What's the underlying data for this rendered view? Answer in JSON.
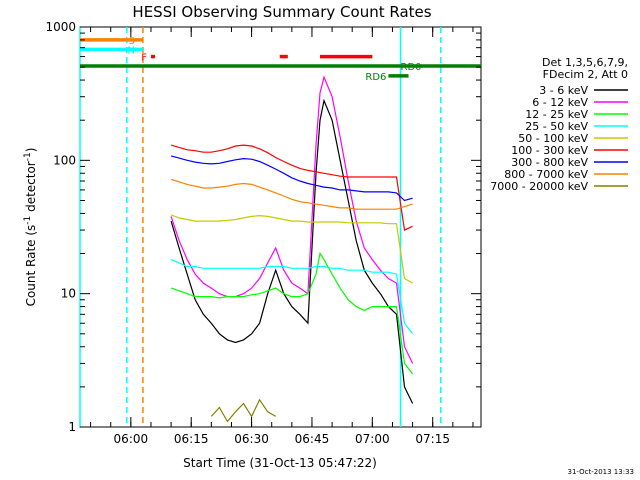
{
  "chart_data": {
    "type": "line",
    "title": "HESSI Observing Summary Count Rates",
    "xlabel": "Start Time (31-Oct-13 05:47:22)",
    "ylabel": "Count Rate (s-1 detector-1)",
    "x_unit": "HH:MM",
    "xlim": [
      "05:47:22",
      "07:27:00"
    ],
    "x_ticks": [
      "06:00",
      "06:15",
      "06:30",
      "06:45",
      "07:00",
      "07:15"
    ],
    "y_scale": "log",
    "ylim": [
      1,
      1000
    ],
    "y_ticks": [
      "1",
      "10",
      "100",
      "1000"
    ],
    "grid": false,
    "legend_position": "right",
    "legend_header": [
      "Det 1,3,5,6,7,9,",
      "FDecim 2, Att 0"
    ],
    "series": [
      {
        "name": "3 - 6 keV",
        "color": "#000000",
        "x": [
          "06:10",
          "06:12",
          "06:14",
          "06:16",
          "06:18",
          "06:20",
          "06:22",
          "06:24",
          "06:26",
          "06:28",
          "06:30",
          "06:32",
          "06:34",
          "06:36",
          "06:38",
          "06:40",
          "06:42",
          "06:44",
          "06:46",
          "06:47",
          "06:48",
          "06:50",
          "06:52",
          "06:54",
          "06:56",
          "06:58",
          "07:00",
          "07:02",
          "07:04",
          "07:06",
          "07:08",
          "07:10"
        ],
        "y": [
          35,
          22,
          14,
          9,
          7,
          6,
          5,
          4.5,
          4.3,
          4.5,
          5,
          6,
          10,
          15,
          10,
          8,
          7,
          6,
          80,
          200,
          280,
          200,
          100,
          50,
          25,
          15,
          12,
          10,
          8,
          7,
          2,
          1.5
        ]
      },
      {
        "name": "6 - 12 keV",
        "color": "#ff00ff",
        "x": [
          "06:10",
          "06:12",
          "06:14",
          "06:16",
          "06:18",
          "06:20",
          "06:22",
          "06:24",
          "06:26",
          "06:28",
          "06:30",
          "06:32",
          "06:34",
          "06:36",
          "06:38",
          "06:40",
          "06:42",
          "06:44",
          "06:46",
          "06:47",
          "06:48",
          "06:50",
          "06:52",
          "06:54",
          "06:56",
          "06:58",
          "07:00",
          "07:02",
          "07:04",
          "07:06",
          "07:08",
          "07:10"
        ],
        "y": [
          38,
          25,
          18,
          14,
          12,
          11,
          10,
          9.5,
          9.5,
          10,
          11,
          13,
          17,
          22,
          15,
          12,
          11,
          10,
          130,
          320,
          420,
          300,
          150,
          70,
          35,
          22,
          18,
          15,
          13,
          12,
          4,
          3
        ]
      },
      {
        "name": "12 - 25 keV",
        "color": "#00ff00",
        "x": [
          "06:10",
          "06:12",
          "06:14",
          "06:16",
          "06:18",
          "06:20",
          "06:22",
          "06:24",
          "06:26",
          "06:28",
          "06:30",
          "06:32",
          "06:34",
          "06:36",
          "06:38",
          "06:40",
          "06:42",
          "06:44",
          "06:46",
          "06:47",
          "06:48",
          "06:50",
          "06:52",
          "06:54",
          "06:56",
          "06:58",
          "07:00",
          "07:02",
          "07:04",
          "07:06",
          "07:08",
          "07:10"
        ],
        "y": [
          11,
          10.5,
          10,
          9.5,
          9.5,
          9.5,
          9.3,
          9.5,
          9.5,
          9.5,
          9.8,
          10,
          10.5,
          11,
          10,
          9.5,
          9.5,
          10,
          14,
          20,
          18,
          14,
          11,
          9,
          8,
          7.5,
          8,
          8,
          8,
          8,
          3,
          2.5
        ]
      },
      {
        "name": "25 - 50 keV",
        "color": "#00ffff",
        "x": [
          "06:10",
          "06:12",
          "06:14",
          "06:16",
          "06:18",
          "06:20",
          "06:22",
          "06:24",
          "06:26",
          "06:28",
          "06:30",
          "06:32",
          "06:34",
          "06:36",
          "06:38",
          "06:40",
          "06:42",
          "06:44",
          "06:46",
          "06:48",
          "06:50",
          "06:52",
          "06:54",
          "06:56",
          "06:58",
          "07:00",
          "07:02",
          "07:04",
          "07:06",
          "07:08",
          "07:10"
        ],
        "y": [
          18,
          17,
          16,
          16,
          15.5,
          15.5,
          15.5,
          15.5,
          15.5,
          15.5,
          15.5,
          15.5,
          16,
          16,
          16,
          15.5,
          15.5,
          15.5,
          16,
          16,
          15.5,
          15.5,
          15,
          15,
          15,
          14.5,
          14.5,
          14.5,
          14,
          6,
          5
        ]
      },
      {
        "name": "50 - 100 keV",
        "color": "#c8c800",
        "x": [
          "06:10",
          "06:12",
          "06:14",
          "06:16",
          "06:18",
          "06:20",
          "06:22",
          "06:24",
          "06:26",
          "06:28",
          "06:30",
          "06:32",
          "06:34",
          "06:36",
          "06:38",
          "06:40",
          "06:42",
          "06:44",
          "06:46",
          "06:48",
          "06:50",
          "06:52",
          "06:54",
          "06:56",
          "06:58",
          "07:00",
          "07:02",
          "07:04",
          "07:06",
          "07:08",
          "07:10"
        ],
        "y": [
          39,
          37,
          36,
          35,
          35,
          35,
          35,
          35.5,
          36,
          37,
          38,
          38.5,
          38,
          37,
          36,
          35,
          35,
          34.5,
          34.5,
          34.5,
          34.5,
          34.5,
          34,
          34,
          34,
          34,
          34,
          33.5,
          33.5,
          13,
          12
        ]
      },
      {
        "name": "100 - 300 keV",
        "color": "#ff0000",
        "x": [
          "06:10",
          "06:12",
          "06:14",
          "06:16",
          "06:18",
          "06:20",
          "06:22",
          "06:24",
          "06:26",
          "06:28",
          "06:30",
          "06:32",
          "06:34",
          "06:36",
          "06:38",
          "06:40",
          "06:42",
          "06:44",
          "06:46",
          "06:48",
          "06:50",
          "06:52",
          "06:54",
          "06:56",
          "06:58",
          "07:00",
          "07:02",
          "07:04",
          "07:06",
          "07:08",
          "07:10"
        ],
        "y": [
          130,
          125,
          120,
          118,
          115,
          115,
          118,
          122,
          128,
          130,
          128,
          122,
          114,
          105,
          98,
          92,
          87,
          84,
          82,
          80,
          78,
          76,
          75,
          75,
          75,
          75,
          75,
          75,
          75,
          30,
          32
        ]
      },
      {
        "name": "300 - 800 keV",
        "color": "#0000ff",
        "x": [
          "06:10",
          "06:12",
          "06:14",
          "06:16",
          "06:18",
          "06:20",
          "06:22",
          "06:24",
          "06:26",
          "06:28",
          "06:30",
          "06:32",
          "06:34",
          "06:36",
          "06:38",
          "06:40",
          "06:42",
          "06:44",
          "06:46",
          "06:48",
          "06:50",
          "06:52",
          "06:54",
          "06:56",
          "06:58",
          "07:00",
          "07:02",
          "07:04",
          "07:06",
          "07:08",
          "07:10"
        ],
        "y": [
          108,
          104,
          100,
          97,
          95,
          94,
          95,
          98,
          101,
          103,
          102,
          98,
          92,
          86,
          80,
          74,
          70,
          67,
          65,
          63,
          62,
          60,
          60,
          59,
          58,
          58,
          58,
          58,
          57,
          50,
          52
        ]
      },
      {
        "name": "800 - 7000 keV",
        "color": "#ff8000",
        "x": [
          "06:10",
          "06:12",
          "06:14",
          "06:16",
          "06:18",
          "06:20",
          "06:22",
          "06:24",
          "06:26",
          "06:28",
          "06:30",
          "06:32",
          "06:34",
          "06:36",
          "06:38",
          "06:40",
          "06:42",
          "06:44",
          "06:46",
          "06:48",
          "06:50",
          "06:52",
          "06:54",
          "06:56",
          "06:58",
          "07:00",
          "07:02",
          "07:04",
          "07:06",
          "07:08",
          "07:10"
        ],
        "y": [
          72,
          69,
          66,
          64,
          62,
          62,
          63,
          64,
          66,
          67,
          66,
          63,
          60,
          57,
          54,
          51,
          49,
          48,
          47,
          46,
          45,
          44,
          44,
          43,
          43,
          43,
          43,
          43,
          43,
          45,
          47
        ]
      },
      {
        "name": "7000 - 20000 keV",
        "color": "#808000",
        "x": [
          "06:20",
          "06:22",
          "06:24",
          "06:26",
          "06:28",
          "06:30",
          "06:32",
          "06:34",
          "06:36"
        ],
        "y": [
          1.2,
          1.4,
          1.1,
          1.3,
          1.5,
          1.2,
          1.6,
          1.3,
          1.2
        ]
      }
    ],
    "annotations": [
      {
        "label": "S",
        "color": "#ff8000",
        "y": 800,
        "x_start": "05:47:22",
        "x_end": "06:03"
      },
      {
        "label": "N",
        "color": "#00ffff",
        "y": 680,
        "x_start": "05:47:22",
        "x_end": "06:03"
      },
      {
        "label": "F",
        "color": "#ff0000",
        "y": 600,
        "segments": [
          [
            "06:05",
            "06:06"
          ],
          [
            "06:37",
            "06:39"
          ],
          [
            "06:47",
            "07:00"
          ]
        ]
      },
      {
        "label": "RD0",
        "color": "#008000",
        "y": 510,
        "x_start": "05:47:22",
        "x_end": "07:27"
      },
      {
        "label": "RD6",
        "color": "#008000",
        "y": 430,
        "x_start": "07:04",
        "x_end": "07:09"
      }
    ],
    "vertical_markers": [
      {
        "x": "05:47:22",
        "color": "#00ffff",
        "style": "solid"
      },
      {
        "x": "05:59",
        "color": "#00ffff",
        "style": "dashed"
      },
      {
        "x": "06:03",
        "color": "#ff8000",
        "style": "dashed"
      },
      {
        "x": "07:07",
        "color": "#00ffff",
        "style": "solid"
      },
      {
        "x": "07:17",
        "color": "#00ffff",
        "style": "dashed"
      }
    ]
  },
  "footer": {
    "timestamp": "31-Oct-2013 13:33"
  }
}
